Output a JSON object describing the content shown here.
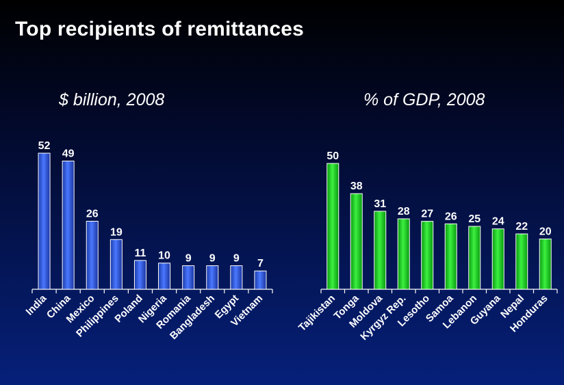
{
  "slide": {
    "title": "Top recipients of remittances"
  },
  "colors": {
    "left_bar": "#2f57d9",
    "right_bar": "#12d41a",
    "axis": "#ffffff"
  },
  "chart_data": [
    {
      "type": "bar",
      "title": "$ billion, 2008",
      "categories": [
        "India",
        "China",
        "Mexico",
        "Philippines",
        "Poland",
        "Nigeria",
        "Romania",
        "Bangladesh",
        "Egypt",
        "Vietnam"
      ],
      "values": [
        52,
        49,
        26,
        19,
        11,
        10,
        9,
        9,
        9,
        7
      ],
      "data_labels": [
        "52",
        "49",
        "26",
        "19",
        "11",
        "10",
        "9",
        "9",
        "9",
        "7"
      ],
      "ylim": [
        0,
        52
      ],
      "grid": false
    },
    {
      "type": "bar",
      "title": "% of GDP, 2008",
      "categories": [
        "Tajikistan",
        "Tonga",
        "Moldova",
        "Kyrgyz Rep.",
        "Lesotho",
        "Samoa",
        "Lebanon",
        "Guyana",
        "Nepal",
        "Honduras"
      ],
      "values": [
        50,
        38,
        31,
        28,
        27,
        26,
        25,
        24,
        22,
        20
      ],
      "data_labels": [
        "50",
        "38",
        "31",
        "28",
        "27",
        "26",
        "25",
        "24",
        "22",
        "20"
      ],
      "ylim": [
        0,
        50
      ],
      "grid": false
    }
  ]
}
